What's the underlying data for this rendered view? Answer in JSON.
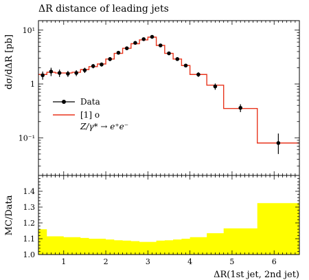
{
  "title": "ΔR distance of leading jets",
  "colors": {
    "data": "#000000",
    "mc": "#e8341c",
    "ratio_band": "#ffff00",
    "axis": "#000000"
  },
  "chart_data": [
    {
      "type": "line",
      "panel": "main",
      "xlabel": "",
      "ylabel": "dσ/dΔR [pb]",
      "xlim": [
        0.4,
        6.6
      ],
      "ylim": [
        0.02,
        15
      ],
      "yscale": "log",
      "xticks": [
        1,
        2,
        3,
        4,
        5,
        6
      ],
      "yticks": [
        {
          "value": 10,
          "label": "10¹"
        },
        {
          "value": 1,
          "label": "1"
        },
        {
          "value": 0.1,
          "label": "10⁻¹"
        }
      ],
      "legend": {
        "position": "left-middle",
        "entries": [
          "Data",
          "[1] o",
          "Z/γ* → e⁺e⁻"
        ]
      },
      "series": [
        {
          "name": "Data",
          "style": "points-with-errors",
          "x": [
            0.5,
            0.7,
            0.9,
            1.1,
            1.3,
            1.5,
            1.7,
            1.9,
            2.1,
            2.3,
            2.5,
            2.7,
            2.9,
            3.1,
            3.3,
            3.5,
            3.7,
            3.9,
            4.2,
            4.6,
            5.2,
            6.1
          ],
          "y": [
            1.45,
            1.7,
            1.6,
            1.55,
            1.6,
            1.8,
            2.15,
            2.3,
            2.9,
            3.8,
            4.6,
            5.8,
            6.8,
            7.5,
            5.2,
            3.7,
            2.9,
            2.2,
            1.5,
            0.9,
            0.36,
            0.08
          ],
          "yerr_low": [
            0.25,
            0.3,
            0.25,
            0.2,
            0.2,
            0.2,
            0.2,
            0.2,
            0.25,
            0.3,
            0.3,
            0.35,
            0.4,
            0.4,
            0.3,
            0.25,
            0.2,
            0.15,
            0.15,
            0.12,
            0.06,
            0.03
          ],
          "yerr_high": [
            0.25,
            0.3,
            0.25,
            0.2,
            0.2,
            0.2,
            0.2,
            0.2,
            0.25,
            0.3,
            0.3,
            0.35,
            0.4,
            0.4,
            0.3,
            0.25,
            0.2,
            0.15,
            0.15,
            0.12,
            0.06,
            0.04
          ]
        },
        {
          "name": "[1] o",
          "style": "step",
          "bin_edges": [
            0.4,
            0.6,
            0.8,
            1.0,
            1.2,
            1.4,
            1.6,
            1.8,
            2.0,
            2.2,
            2.4,
            2.6,
            2.8,
            3.0,
            3.2,
            3.4,
            3.6,
            3.8,
            4.0,
            4.4,
            4.8,
            5.6,
            6.6
          ],
          "values": [
            1.5,
            1.65,
            1.6,
            1.6,
            1.65,
            1.85,
            2.1,
            2.35,
            2.9,
            3.7,
            4.6,
            5.6,
            6.6,
            7.4,
            5.2,
            3.7,
            2.9,
            2.2,
            1.5,
            0.95,
            0.35,
            0.08
          ]
        }
      ]
    },
    {
      "type": "area",
      "panel": "ratio",
      "xlabel": "ΔR(1st jet, 2nd jet)",
      "ylabel": "MC/Data",
      "xlim": [
        0.4,
        6.6
      ],
      "ylim": [
        1.0,
        1.5
      ],
      "xticks": [
        1,
        2,
        3,
        4,
        5,
        6
      ],
      "yticks": [
        1.0,
        1.1,
        1.2,
        1.3,
        1.4
      ],
      "series": [
        {
          "name": "MC/Data",
          "style": "filled-step-band",
          "bin_edges": [
            0.4,
            0.6,
            0.8,
            1.0,
            1.2,
            1.4,
            1.6,
            1.8,
            2.0,
            2.2,
            2.4,
            2.6,
            2.8,
            3.0,
            3.2,
            3.4,
            3.6,
            3.8,
            4.0,
            4.4,
            4.8,
            5.6,
            6.6
          ],
          "low": [
            1.0,
            1.0,
            1.0,
            1.0,
            1.0,
            1.0,
            1.0,
            1.0,
            1.0,
            1.0,
            1.0,
            1.0,
            1.0,
            1.0,
            1.0,
            1.0,
            1.0,
            1.0,
            1.0,
            1.0,
            1.0,
            1.0
          ],
          "high": [
            1.16,
            1.115,
            1.115,
            1.11,
            1.11,
            1.105,
            1.1,
            1.1,
            1.095,
            1.09,
            1.088,
            1.085,
            1.08,
            1.08,
            1.088,
            1.09,
            1.095,
            1.1,
            1.11,
            1.135,
            1.165,
            1.325
          ]
        }
      ]
    }
  ]
}
